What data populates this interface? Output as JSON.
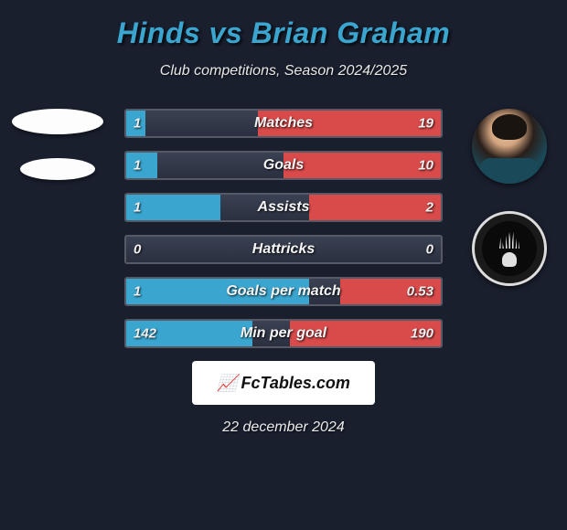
{
  "title": "Hinds vs Brian Graham",
  "subtitle": "Club competitions, Season 2024/2025",
  "date": "22 december 2024",
  "brand": "FcTables.com",
  "colors": {
    "title": "#3aa6d0",
    "left_bar": "#3aa6d0",
    "right_bar": "#d94a4a",
    "background": "#1a1f2e",
    "bar_border": "#555a66"
  },
  "bars": [
    {
      "label": "Matches",
      "left": "1",
      "right": "19",
      "lfill": 6,
      "rfill": 58
    },
    {
      "label": "Goals",
      "left": "1",
      "right": "10",
      "lfill": 10,
      "rfill": 50
    },
    {
      "label": "Assists",
      "left": "1",
      "right": "2",
      "lfill": 30,
      "rfill": 42
    },
    {
      "label": "Hattricks",
      "left": "0",
      "right": "0",
      "lfill": 0,
      "rfill": 0
    },
    {
      "label": "Goals per match",
      "left": "1",
      "right": "0.53",
      "lfill": 58,
      "rfill": 32
    },
    {
      "label": "Min per goal",
      "left": "142",
      "right": "190",
      "lfill": 40,
      "rfill": 48
    }
  ]
}
